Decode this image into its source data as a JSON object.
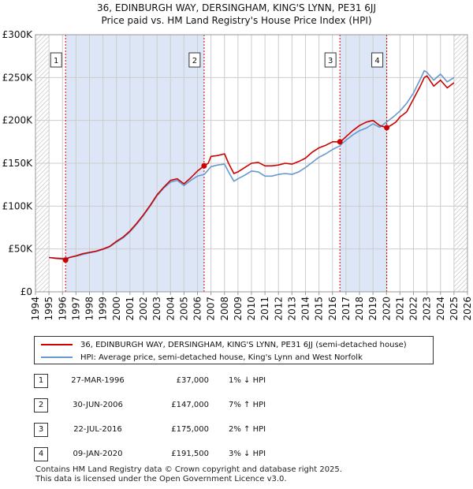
{
  "title_line1": "36, EDINBURGH WAY, DERSINGHAM, KING'S LYNN, PE31 6JJ",
  "title_line2": "Price paid vs. HM Land Registry's House Price Index (HPI)",
  "colors": {
    "property": "#cc0000",
    "hpi": "#6699cc",
    "shade": "#dde6f7",
    "grid": "#cccccc",
    "marker": "#cc0000"
  },
  "chart_data": {
    "type": "line",
    "title": "Price paid vs. HM Land Registry's House Price Index (HPI)",
    "xlabel": "",
    "ylabel": "",
    "xlim": [
      1994,
      2026
    ],
    "ylim": [
      0,
      300000
    ],
    "y_ticks": [
      {
        "value": 0,
        "label": "£0"
      },
      {
        "value": 50000,
        "label": "£50K"
      },
      {
        "value": 100000,
        "label": "£100K"
      },
      {
        "value": 150000,
        "label": "£150K"
      },
      {
        "value": 200000,
        "label": "£200K"
      },
      {
        "value": 250000,
        "label": "£250K"
      },
      {
        "value": 300000,
        "label": "£300K"
      }
    ],
    "x_ticks": [
      "1994",
      "1995",
      "1996",
      "1997",
      "1998",
      "1999",
      "2000",
      "2001",
      "2002",
      "2003",
      "2004",
      "2005",
      "2006",
      "2007",
      "2008",
      "2009",
      "2010",
      "2011",
      "2012",
      "2013",
      "2014",
      "2015",
      "2016",
      "2017",
      "2018",
      "2019",
      "2020",
      "2021",
      "2022",
      "2023",
      "2024",
      "2025",
      "2026"
    ],
    "shaded_ranges": [
      [
        1996.23,
        2006.49
      ],
      [
        2016.55,
        2020.02
      ]
    ],
    "hatched_ranges": [
      [
        1994,
        1995.0
      ],
      [
        2025.0,
        2026
      ]
    ],
    "series": [
      {
        "name": "36, EDINBURGH WAY, DERSINGHAM, KING'S LYNN, PE31 6JJ (semi-detached house)",
        "color": "#cc0000",
        "x": [
          1995.0,
          1995.5,
          1996.0,
          1996.23,
          1996.5,
          1997.0,
          1997.5,
          1998.0,
          1998.5,
          1999.0,
          1999.5,
          2000.0,
          2000.5,
          2001.0,
          2001.5,
          2002.0,
          2002.5,
          2003.0,
          2003.5,
          2004.0,
          2004.5,
          2005.0,
          2005.5,
          2006.0,
          2006.49,
          2006.8,
          2007.0,
          2007.5,
          2008.0,
          2008.3,
          2008.7,
          2009.0,
          2009.5,
          2010.0,
          2010.5,
          2011.0,
          2011.5,
          2012.0,
          2012.5,
          2013.0,
          2013.5,
          2014.0,
          2014.5,
          2015.0,
          2015.5,
          2016.0,
          2016.55,
          2016.8,
          2017.0,
          2017.5,
          2018.0,
          2018.5,
          2019.0,
          2019.5,
          2020.02,
          2020.3,
          2020.7,
          2021.0,
          2021.5,
          2022.0,
          2022.5,
          2022.8,
          2023.0,
          2023.5,
          2024.0,
          2024.5,
          2025.0
        ],
        "values": [
          40000,
          39000,
          38500,
          37000,
          40000,
          42000,
          44500,
          46000,
          47500,
          50000,
          53000,
          59000,
          64000,
          71000,
          80000,
          90000,
          101000,
          113000,
          122000,
          130000,
          132000,
          126000,
          133000,
          141000,
          147000,
          150000,
          158000,
          159000,
          161000,
          150000,
          138000,
          140000,
          145000,
          150000,
          151000,
          147000,
          147000,
          148000,
          150000,
          149000,
          152000,
          156000,
          163000,
          168000,
          171000,
          175000,
          175000,
          178000,
          181000,
          188000,
          194000,
          198000,
          200000,
          194000,
          191500,
          194000,
          198000,
          204000,
          210000,
          225000,
          240000,
          250000,
          252000,
          240000,
          247000,
          238000,
          244000
        ]
      },
      {
        "name": "HPI: Average price, semi-detached house, King's Lynn and West Norfolk",
        "color": "#6699cc",
        "x": [
          1995.0,
          1995.5,
          1996.0,
          1996.5,
          1997.0,
          1997.5,
          1998.0,
          1998.5,
          1999.0,
          1999.5,
          2000.0,
          2000.5,
          2001.0,
          2001.5,
          2002.0,
          2002.5,
          2003.0,
          2003.5,
          2004.0,
          2004.5,
          2005.0,
          2005.5,
          2006.0,
          2006.5,
          2007.0,
          2007.5,
          2008.0,
          2008.3,
          2008.7,
          2009.0,
          2009.5,
          2010.0,
          2010.5,
          2011.0,
          2011.5,
          2012.0,
          2012.5,
          2013.0,
          2013.5,
          2014.0,
          2014.5,
          2015.0,
          2015.5,
          2016.0,
          2016.5,
          2017.0,
          2017.5,
          2018.0,
          2018.5,
          2019.0,
          2019.5,
          2020.0,
          2020.5,
          2021.0,
          2021.5,
          2022.0,
          2022.5,
          2022.8,
          2023.0,
          2023.5,
          2024.0,
          2024.5,
          2025.0
        ],
        "values": [
          40000,
          39500,
          39000,
          40000,
          41500,
          43500,
          45500,
          47000,
          49500,
          52500,
          58000,
          63000,
          70000,
          79000,
          89000,
          100000,
          112000,
          121000,
          128000,
          130000,
          124000,
          130000,
          135000,
          137000,
          146000,
          148000,
          149000,
          140000,
          129000,
          132000,
          136000,
          141000,
          140000,
          135000,
          135000,
          137000,
          138000,
          137000,
          140000,
          145000,
          151000,
          157000,
          161000,
          166000,
          170000,
          177000,
          183000,
          188000,
          191000,
          196000,
          192000,
          198000,
          204000,
          211000,
          220000,
          232000,
          248000,
          258000,
          256000,
          247000,
          254000,
          245000,
          250000
        ]
      }
    ],
    "sales": [
      {
        "label": "1",
        "x": 1996.23,
        "value": 37000
      },
      {
        "label": "2",
        "x": 2006.49,
        "value": 147000
      },
      {
        "label": "3",
        "x": 2016.55,
        "value": 175000
      },
      {
        "label": "4",
        "x": 2020.02,
        "value": 191500
      }
    ]
  },
  "legend": {
    "property": "36, EDINBURGH WAY, DERSINGHAM, KING'S LYNN, PE31 6JJ (semi-detached house)",
    "hpi": "HPI: Average price, semi-detached house, King's Lynn and West Norfolk"
  },
  "transactions": [
    {
      "num": "1",
      "date": "27-MAR-1996",
      "price": "£37,000",
      "rel": "1% ↓ HPI"
    },
    {
      "num": "2",
      "date": "30-JUN-2006",
      "price": "£147,000",
      "rel": "7% ↑ HPI"
    },
    {
      "num": "3",
      "date": "22-JUL-2016",
      "price": "£175,000",
      "rel": "2% ↑ HPI"
    },
    {
      "num": "4",
      "date": "09-JAN-2020",
      "price": "£191,500",
      "rel": "3% ↓ HPI"
    }
  ],
  "footer": {
    "line1": "Contains HM Land Registry data © Crown copyright and database right 2025.",
    "line2": "This data is licensed under the Open Government Licence v3.0."
  }
}
